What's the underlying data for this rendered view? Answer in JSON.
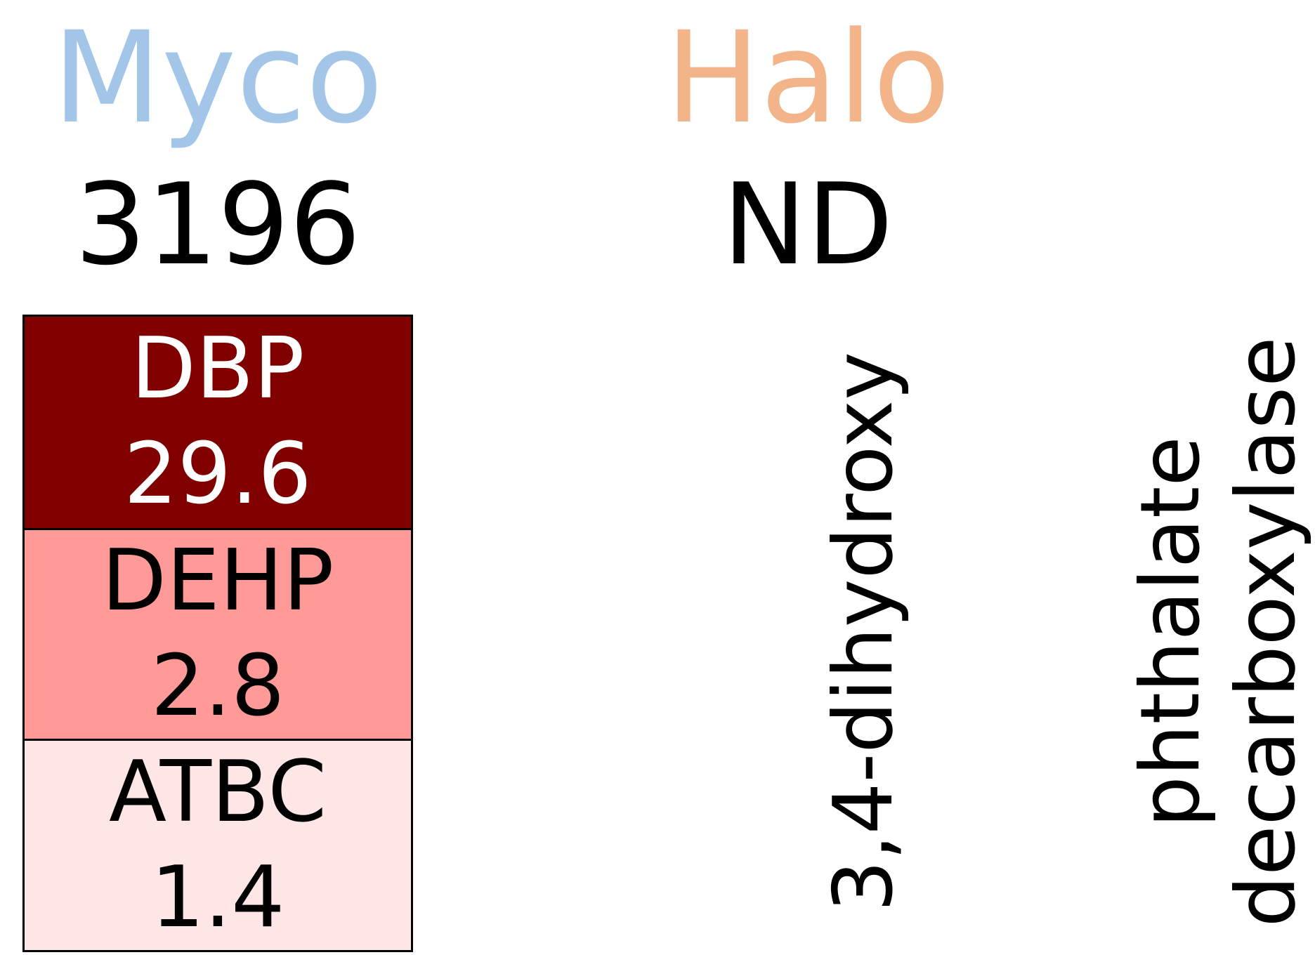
{
  "chart_data": {
    "type": "heatmap",
    "columns": [
      {
        "name": "Myco",
        "color": "#a3c6e8",
        "count": "3196"
      },
      {
        "name": "Halo",
        "color": "#f2b488",
        "count": "ND"
      }
    ],
    "cells": [
      {
        "column": "Myco",
        "label": "DBP",
        "value": 29.6,
        "value_text": "29.6",
        "fill": "#800000",
        "text_color": "#ffffff"
      },
      {
        "column": "Myco",
        "label": "DEHP",
        "value": 2.8,
        "value_text": "2.8",
        "fill": "#ff9a98",
        "text_color": "#000000"
      },
      {
        "column": "Myco",
        "label": "ATBC",
        "value": 1.4,
        "value_text": "1.4",
        "fill": "#ffe6e6",
        "text_color": "#000000"
      }
    ],
    "row_label": [
      "3,4-dihydroxy",
      "phthalate",
      "decarboxylase"
    ]
  }
}
